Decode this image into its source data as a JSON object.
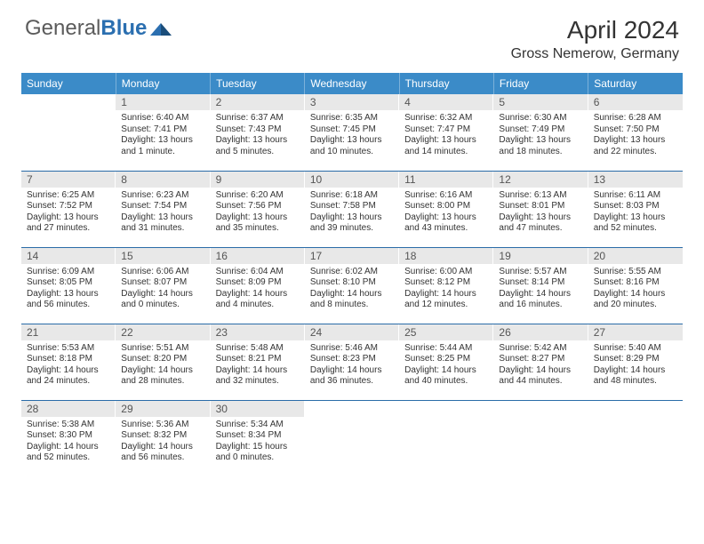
{
  "brand": {
    "text1": "General",
    "text2": "Blue"
  },
  "title": "April 2024",
  "location": "Gross Nemerow, Germany",
  "colors": {
    "header_bg": "#3b8bc8",
    "day_num_bg": "#e8e8e8",
    "border": "#2a6ca8",
    "text": "#333333",
    "brand_grey": "#5b5b5b",
    "brand_blue": "#2b6fb0"
  },
  "weekdays": [
    "Sunday",
    "Monday",
    "Tuesday",
    "Wednesday",
    "Thursday",
    "Friday",
    "Saturday"
  ],
  "weeks": [
    [
      {
        "num": "",
        "sunrise": "",
        "sunset": "",
        "daylight": ""
      },
      {
        "num": "1",
        "sunrise": "Sunrise: 6:40 AM",
        "sunset": "Sunset: 7:41 PM",
        "daylight": "Daylight: 13 hours and 1 minute."
      },
      {
        "num": "2",
        "sunrise": "Sunrise: 6:37 AM",
        "sunset": "Sunset: 7:43 PM",
        "daylight": "Daylight: 13 hours and 5 minutes."
      },
      {
        "num": "3",
        "sunrise": "Sunrise: 6:35 AM",
        "sunset": "Sunset: 7:45 PM",
        "daylight": "Daylight: 13 hours and 10 minutes."
      },
      {
        "num": "4",
        "sunrise": "Sunrise: 6:32 AM",
        "sunset": "Sunset: 7:47 PM",
        "daylight": "Daylight: 13 hours and 14 minutes."
      },
      {
        "num": "5",
        "sunrise": "Sunrise: 6:30 AM",
        "sunset": "Sunset: 7:49 PM",
        "daylight": "Daylight: 13 hours and 18 minutes."
      },
      {
        "num": "6",
        "sunrise": "Sunrise: 6:28 AM",
        "sunset": "Sunset: 7:50 PM",
        "daylight": "Daylight: 13 hours and 22 minutes."
      }
    ],
    [
      {
        "num": "7",
        "sunrise": "Sunrise: 6:25 AM",
        "sunset": "Sunset: 7:52 PM",
        "daylight": "Daylight: 13 hours and 27 minutes."
      },
      {
        "num": "8",
        "sunrise": "Sunrise: 6:23 AM",
        "sunset": "Sunset: 7:54 PM",
        "daylight": "Daylight: 13 hours and 31 minutes."
      },
      {
        "num": "9",
        "sunrise": "Sunrise: 6:20 AM",
        "sunset": "Sunset: 7:56 PM",
        "daylight": "Daylight: 13 hours and 35 minutes."
      },
      {
        "num": "10",
        "sunrise": "Sunrise: 6:18 AM",
        "sunset": "Sunset: 7:58 PM",
        "daylight": "Daylight: 13 hours and 39 minutes."
      },
      {
        "num": "11",
        "sunrise": "Sunrise: 6:16 AM",
        "sunset": "Sunset: 8:00 PM",
        "daylight": "Daylight: 13 hours and 43 minutes."
      },
      {
        "num": "12",
        "sunrise": "Sunrise: 6:13 AM",
        "sunset": "Sunset: 8:01 PM",
        "daylight": "Daylight: 13 hours and 47 minutes."
      },
      {
        "num": "13",
        "sunrise": "Sunrise: 6:11 AM",
        "sunset": "Sunset: 8:03 PM",
        "daylight": "Daylight: 13 hours and 52 minutes."
      }
    ],
    [
      {
        "num": "14",
        "sunrise": "Sunrise: 6:09 AM",
        "sunset": "Sunset: 8:05 PM",
        "daylight": "Daylight: 13 hours and 56 minutes."
      },
      {
        "num": "15",
        "sunrise": "Sunrise: 6:06 AM",
        "sunset": "Sunset: 8:07 PM",
        "daylight": "Daylight: 14 hours and 0 minutes."
      },
      {
        "num": "16",
        "sunrise": "Sunrise: 6:04 AM",
        "sunset": "Sunset: 8:09 PM",
        "daylight": "Daylight: 14 hours and 4 minutes."
      },
      {
        "num": "17",
        "sunrise": "Sunrise: 6:02 AM",
        "sunset": "Sunset: 8:10 PM",
        "daylight": "Daylight: 14 hours and 8 minutes."
      },
      {
        "num": "18",
        "sunrise": "Sunrise: 6:00 AM",
        "sunset": "Sunset: 8:12 PM",
        "daylight": "Daylight: 14 hours and 12 minutes."
      },
      {
        "num": "19",
        "sunrise": "Sunrise: 5:57 AM",
        "sunset": "Sunset: 8:14 PM",
        "daylight": "Daylight: 14 hours and 16 minutes."
      },
      {
        "num": "20",
        "sunrise": "Sunrise: 5:55 AM",
        "sunset": "Sunset: 8:16 PM",
        "daylight": "Daylight: 14 hours and 20 minutes."
      }
    ],
    [
      {
        "num": "21",
        "sunrise": "Sunrise: 5:53 AM",
        "sunset": "Sunset: 8:18 PM",
        "daylight": "Daylight: 14 hours and 24 minutes."
      },
      {
        "num": "22",
        "sunrise": "Sunrise: 5:51 AM",
        "sunset": "Sunset: 8:20 PM",
        "daylight": "Daylight: 14 hours and 28 minutes."
      },
      {
        "num": "23",
        "sunrise": "Sunrise: 5:48 AM",
        "sunset": "Sunset: 8:21 PM",
        "daylight": "Daylight: 14 hours and 32 minutes."
      },
      {
        "num": "24",
        "sunrise": "Sunrise: 5:46 AM",
        "sunset": "Sunset: 8:23 PM",
        "daylight": "Daylight: 14 hours and 36 minutes."
      },
      {
        "num": "25",
        "sunrise": "Sunrise: 5:44 AM",
        "sunset": "Sunset: 8:25 PM",
        "daylight": "Daylight: 14 hours and 40 minutes."
      },
      {
        "num": "26",
        "sunrise": "Sunrise: 5:42 AM",
        "sunset": "Sunset: 8:27 PM",
        "daylight": "Daylight: 14 hours and 44 minutes."
      },
      {
        "num": "27",
        "sunrise": "Sunrise: 5:40 AM",
        "sunset": "Sunset: 8:29 PM",
        "daylight": "Daylight: 14 hours and 48 minutes."
      }
    ],
    [
      {
        "num": "28",
        "sunrise": "Sunrise: 5:38 AM",
        "sunset": "Sunset: 8:30 PM",
        "daylight": "Daylight: 14 hours and 52 minutes."
      },
      {
        "num": "29",
        "sunrise": "Sunrise: 5:36 AM",
        "sunset": "Sunset: 8:32 PM",
        "daylight": "Daylight: 14 hours and 56 minutes."
      },
      {
        "num": "30",
        "sunrise": "Sunrise: 5:34 AM",
        "sunset": "Sunset: 8:34 PM",
        "daylight": "Daylight: 15 hours and 0 minutes."
      },
      {
        "num": "",
        "sunrise": "",
        "sunset": "",
        "daylight": ""
      },
      {
        "num": "",
        "sunrise": "",
        "sunset": "",
        "daylight": ""
      },
      {
        "num": "",
        "sunrise": "",
        "sunset": "",
        "daylight": ""
      },
      {
        "num": "",
        "sunrise": "",
        "sunset": "",
        "daylight": ""
      }
    ]
  ]
}
